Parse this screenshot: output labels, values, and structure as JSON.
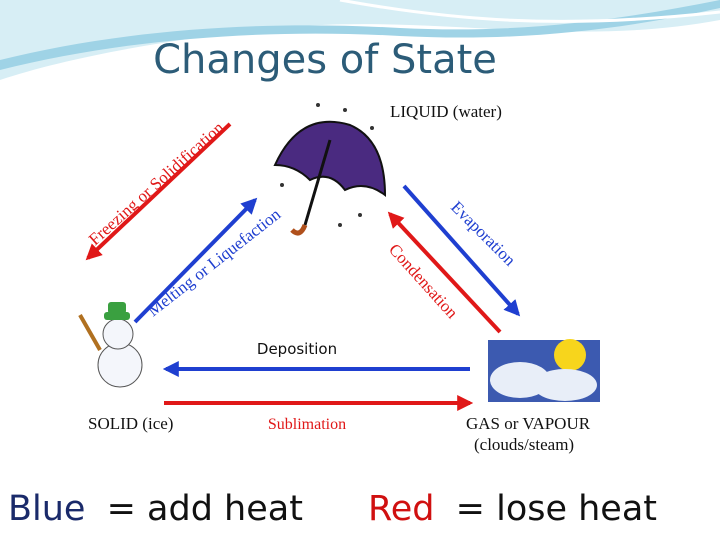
{
  "header": {
    "title": "Changes of State"
  },
  "states": {
    "liquid": "LIQUID (water)",
    "solid": "SOLID (ice)",
    "gas": "GAS or VAPOUR",
    "gas_note": "(clouds/steam)"
  },
  "processes": {
    "freezing": "Freezing or Solidification",
    "melting": "Melting or Liquefaction",
    "evaporation": "Evaporation",
    "condensation": "Condensation",
    "deposition": "Deposition",
    "sublimation": "Sublimation"
  },
  "legend": {
    "blue": "Blue",
    "blue_text": "= add heat",
    "red": "Red",
    "red_text": "= lose heat"
  }
}
